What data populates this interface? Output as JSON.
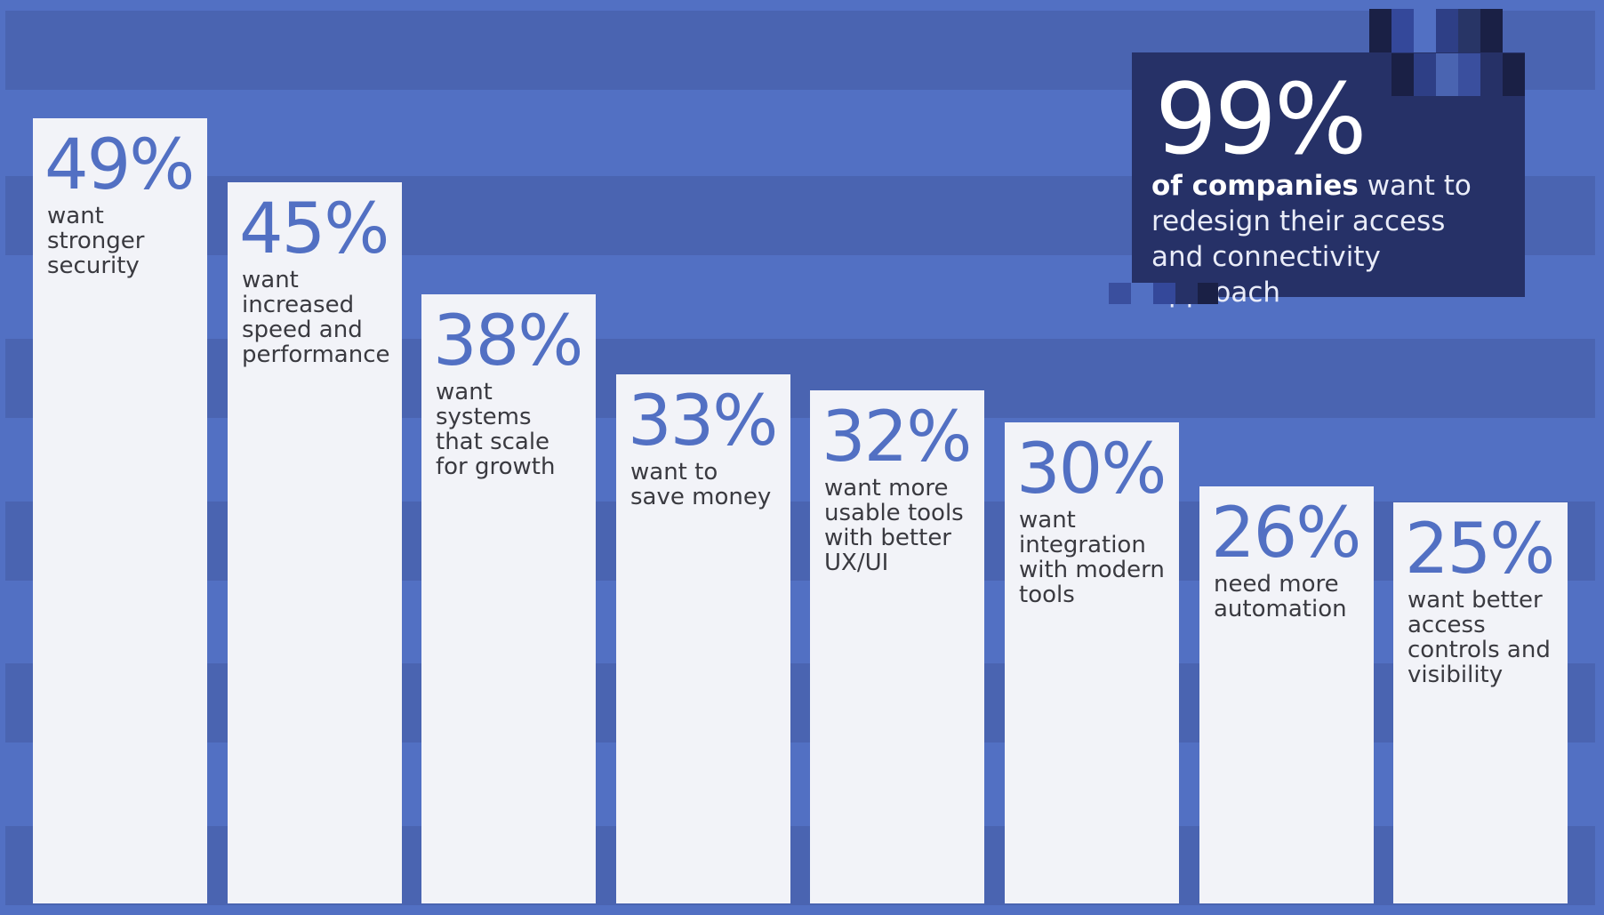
{
  "chart_data": {
    "type": "bar",
    "title": "",
    "xlabel": "",
    "ylabel": "",
    "ylim": [
      0,
      55
    ],
    "unit": "%",
    "categories": [
      "want\nstronger\nsecurity",
      "want\nincreased\nspeed and\nperformance",
      "want\nsystems\nthat scale\nfor growth",
      "want to\nsave money",
      "want more\nusable tools\nwith better\nUX/UI",
      "want\nintegration\nwith modern\ntools",
      "need more\nautomation",
      "want better\naccess\ncontrols and\nvisibility"
    ],
    "values": [
      49,
      45,
      38,
      33,
      32,
      30,
      26,
      25
    ],
    "value_labels": [
      "49%",
      "45%",
      "38%",
      "33%",
      "32%",
      "30%",
      "26%",
      "25%"
    ]
  },
  "callout": {
    "value": "99%",
    "text_bold": "of companies",
    "text_rest": " want to redesign their access and connectivity approach"
  },
  "colors": {
    "background": "#5270c3",
    "stripe": "#4a64b1",
    "bar": "#f2f3f8",
    "value_text": "#5270c3",
    "label_text": "#3a3a40",
    "callout_bg": "#263167"
  }
}
